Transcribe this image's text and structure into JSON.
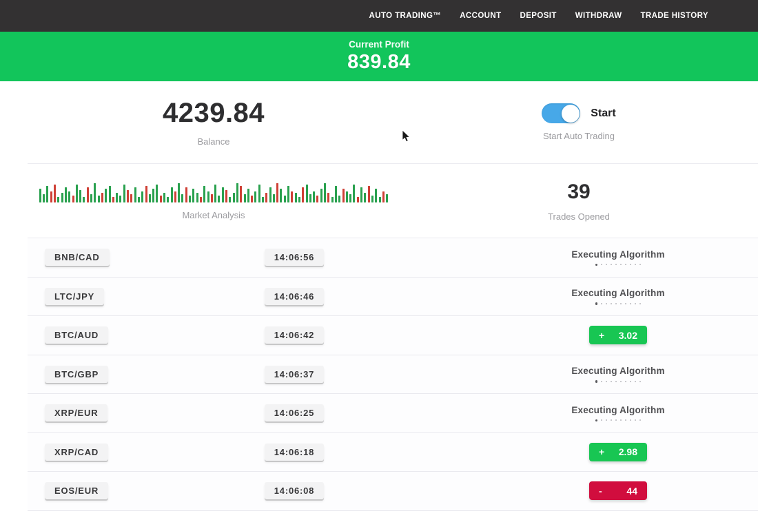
{
  "nav": {
    "items": [
      "AUTO TRADING™",
      "ACCOUNT",
      "DEPOSIT",
      "WITHDRAW",
      "TRADE HISTORY"
    ]
  },
  "profit_banner": {
    "label": "Current Profit",
    "value": "839.84",
    "bg_color": "#12c55b"
  },
  "stats": {
    "balance": {
      "value": "4239.84",
      "label": "Balance"
    },
    "auto_trading": {
      "toggle_label": "Start",
      "caption": "Start Auto Trading",
      "toggle_on": true,
      "toggle_color": "#47a8e8"
    },
    "market_analysis": {
      "label": "Market Analysis"
    },
    "trades_opened": {
      "value": "39",
      "label": "Trades Opened"
    }
  },
  "chart_data": {
    "type": "bar",
    "title": "Market Analysis",
    "description": "Decorative strip of green/red market candles, heights in px, bottom-aligned",
    "unit": "px",
    "colors": {
      "g": "#2aa14f",
      "r": "#cf4036"
    },
    "bars": [
      "g20",
      "g12",
      "g24",
      "r16",
      "r26",
      "g8",
      "g14",
      "g22",
      "g16",
      "r10",
      "g26",
      "g18",
      "g8",
      "r22",
      "g12",
      "g28",
      "g10",
      "r14",
      "g20",
      "g24",
      "r8",
      "g14",
      "g10",
      "g26",
      "r18",
      "r12",
      "g22",
      "g8",
      "g16",
      "r24",
      "g12",
      "g20",
      "g26",
      "r10",
      "g14",
      "g8",
      "g22",
      "r16",
      "g28",
      "g12",
      "r22",
      "g10",
      "g20",
      "g14",
      "r8",
      "g24",
      "g16",
      "r12",
      "g26",
      "g10",
      "g22",
      "r18",
      "g8",
      "g14",
      "g28",
      "r24",
      "g12",
      "g20",
      "r10",
      "g16",
      "g26",
      "g8",
      "r14",
      "g22",
      "g12",
      "r28",
      "g20",
      "g10",
      "g24",
      "r16",
      "g14",
      "g8",
      "r22",
      "g26",
      "g12",
      "g16",
      "r10",
      "g20",
      "g28",
      "r14",
      "g8",
      "g24",
      "g10",
      "r20",
      "g16",
      "g12",
      "g26",
      "r8",
      "g22",
      "g14",
      "r24",
      "g10",
      "g20",
      "g8",
      "r16",
      "g12"
    ]
  },
  "trades": {
    "executing_label": "Executing Algorithm",
    "result_colors": {
      "profit": "#18c653",
      "loss": "#d10d3e"
    },
    "rows": [
      {
        "pair": "BNB/CAD",
        "time": "14:06:56",
        "status": "executing"
      },
      {
        "pair": "LTC/JPY",
        "time": "14:06:46",
        "status": "executing"
      },
      {
        "pair": "BTC/AUD",
        "time": "14:06:42",
        "status": "profit",
        "sign": "+",
        "result": "3.02"
      },
      {
        "pair": "BTC/GBP",
        "time": "14:06:37",
        "status": "executing"
      },
      {
        "pair": "XRP/EUR",
        "time": "14:06:25",
        "status": "executing"
      },
      {
        "pair": "XRP/CAD",
        "time": "14:06:18",
        "status": "profit",
        "sign": "+",
        "result": "2.98"
      },
      {
        "pair": "EOS/EUR",
        "time": "14:06:08",
        "status": "loss",
        "sign": "-",
        "result": "44"
      }
    ]
  }
}
